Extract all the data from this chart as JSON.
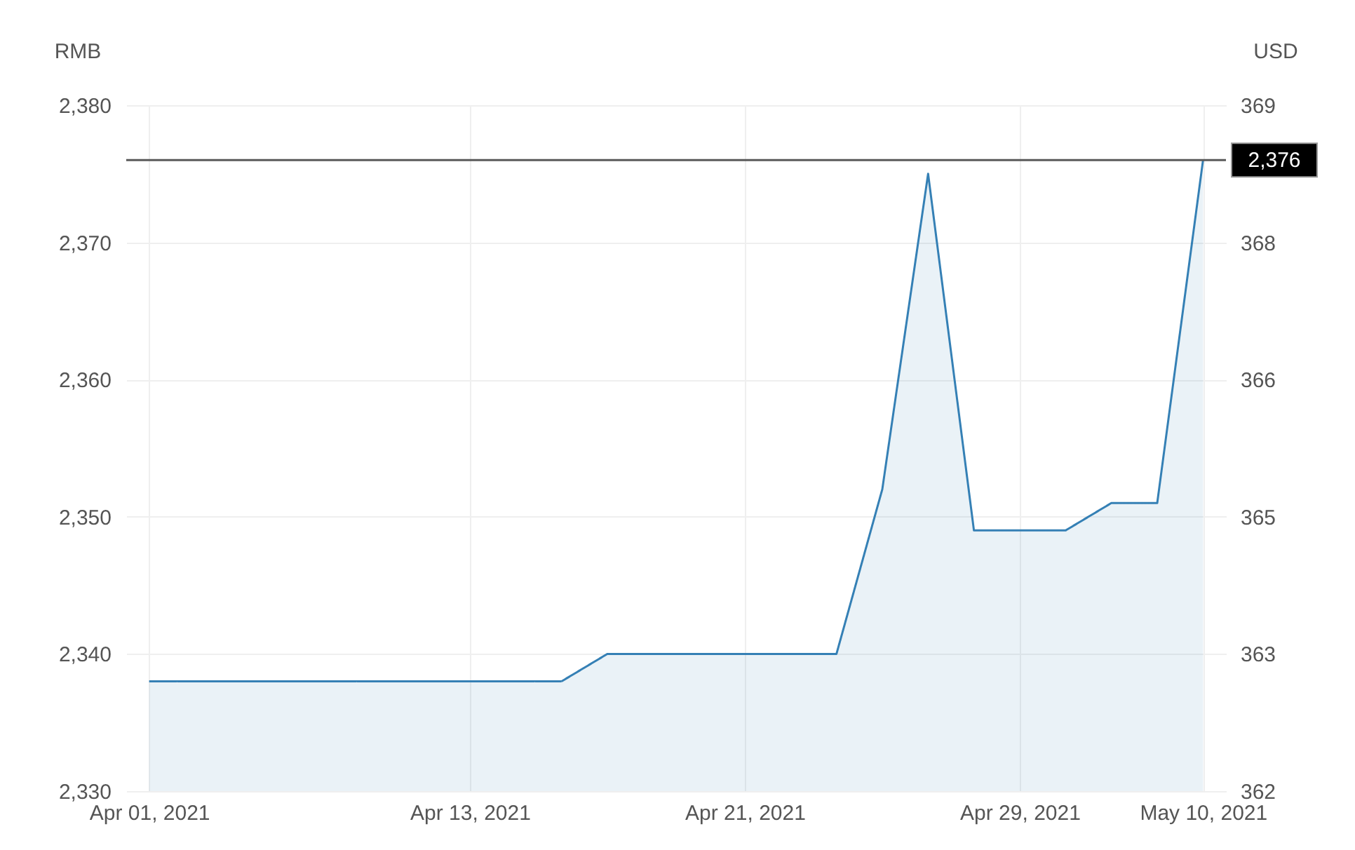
{
  "chart_data": {
    "type": "area",
    "ylabel": "RMB",
    "y2label": "USD",
    "categories": [
      "Apr 01, 2021",
      null,
      null,
      null,
      null,
      null,
      null,
      "Apr 13, 2021",
      null,
      null,
      null,
      null,
      null,
      "Apr 21, 2021",
      null,
      null,
      null,
      null,
      null,
      "Apr 29, 2021",
      null,
      null,
      null,
      "May 10, 2021"
    ],
    "values": [
      2338,
      2338,
      2338,
      2338,
      2338,
      2338,
      2338,
      2338,
      2338,
      2338,
      2340,
      2340,
      2340,
      2340,
      2340,
      2340,
      2352,
      2375,
      2349,
      2349,
      2349,
      2351,
      2351,
      2376
    ],
    "color": "#3580b5",
    "ylim": [
      2330,
      2380
    ],
    "yticks": [
      {
        "value": 2330,
        "label": "2,330"
      },
      {
        "value": 2340,
        "label": "2,340"
      },
      {
        "value": 2350,
        "label": "2,350"
      },
      {
        "value": 2360,
        "label": "2,360"
      },
      {
        "value": 2370,
        "label": "2,370"
      },
      {
        "value": 2380,
        "label": "2,380"
      }
    ],
    "y2lim": [
      361.7,
      369.45
    ],
    "y2ticks": [
      {
        "value": 361.7,
        "label": "362"
      },
      {
        "value": 363.25,
        "label": "363"
      },
      {
        "value": 364.8,
        "label": "365"
      },
      {
        "value": 366.35,
        "label": "366"
      },
      {
        "value": 367.9,
        "label": "368"
      },
      {
        "value": 369.45,
        "label": "369"
      }
    ],
    "ref_lines": [
      {
        "axis": "y",
        "value": 2376,
        "label": "2,376",
        "color": "#5a5a5a"
      }
    ],
    "grid": true
  }
}
